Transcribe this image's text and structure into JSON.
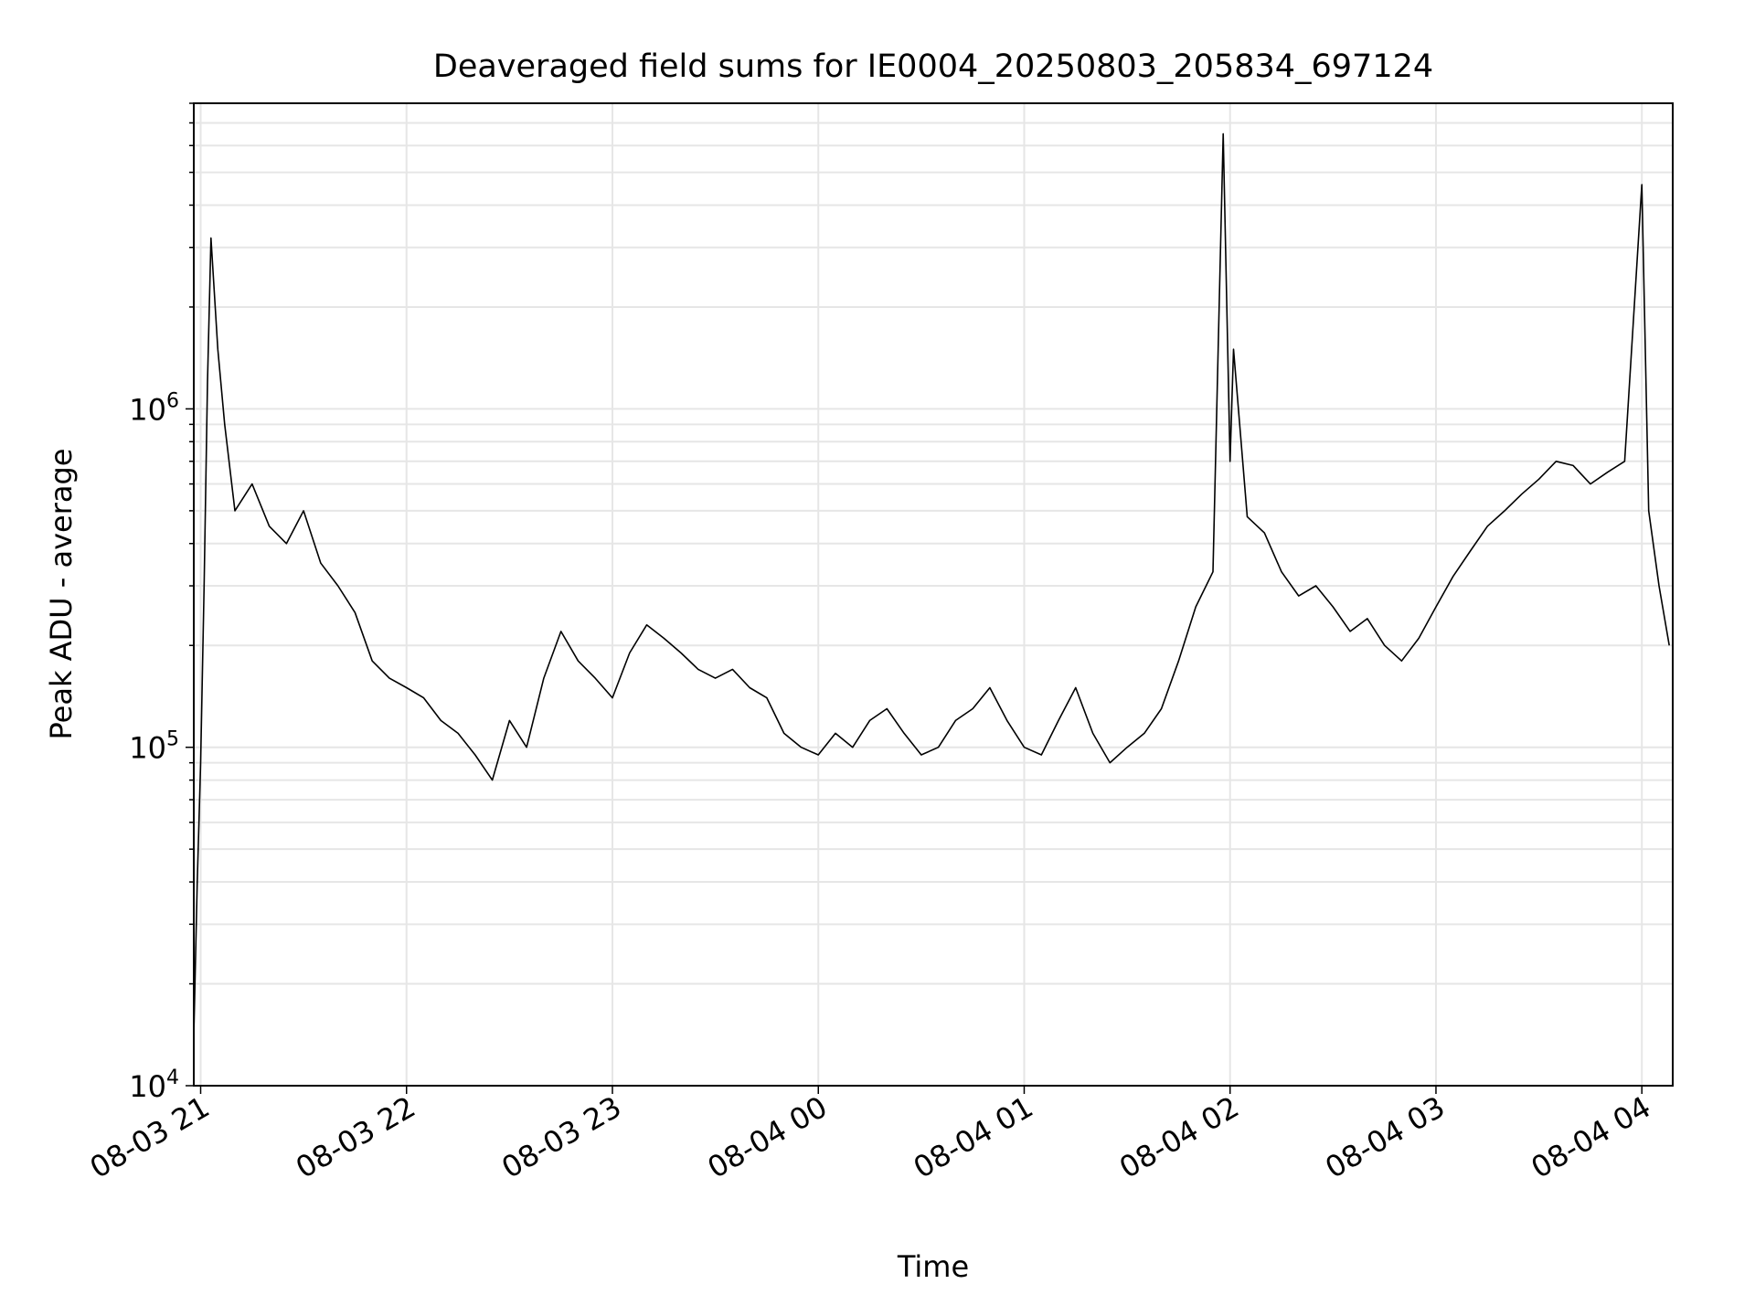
{
  "chart_data": {
    "type": "line",
    "title": "Deaveraged field sums for IE0004_20250803_205834_697124",
    "xlabel": "Time",
    "ylabel": "Peak ADU - average",
    "y_scale": "log",
    "ylim": [
      10000,
      8000000
    ],
    "xlim": [
      "2025-08-03 20:58",
      "2025-08-04 04:09"
    ],
    "x_ticks": [
      {
        "label": "08-03 21",
        "time": "2025-08-03 21:00"
      },
      {
        "label": "08-03 22",
        "time": "2025-08-03 22:00"
      },
      {
        "label": "08-03 23",
        "time": "2025-08-03 23:00"
      },
      {
        "label": "08-04 00",
        "time": "2025-08-04 00:00"
      },
      {
        "label": "08-04 01",
        "time": "2025-08-04 01:00"
      },
      {
        "label": "08-04 02",
        "time": "2025-08-04 02:00"
      },
      {
        "label": "08-04 03",
        "time": "2025-08-04 03:00"
      },
      {
        "label": "08-04 04",
        "time": "2025-08-04 04:00"
      }
    ],
    "y_ticks": [
      {
        "base": "10",
        "exp": "4",
        "value": 10000
      },
      {
        "base": "10",
        "exp": "5",
        "value": 100000
      },
      {
        "base": "10",
        "exp": "6",
        "value": 1000000
      }
    ],
    "grid": true,
    "line_color": "#000000",
    "series": [
      {
        "x": [
          "2025-08-03 20:58",
          "2025-08-03 20:59",
          "2025-08-03 21:00",
          "2025-08-03 21:01",
          "2025-08-03 21:02",
          "2025-08-03 21:03",
          "2025-08-03 21:05",
          "2025-08-03 21:07",
          "2025-08-03 21:10",
          "2025-08-03 21:15",
          "2025-08-03 21:20",
          "2025-08-03 21:25",
          "2025-08-03 21:30",
          "2025-08-03 21:35",
          "2025-08-03 21:40",
          "2025-08-03 21:45",
          "2025-08-03 21:50",
          "2025-08-03 21:55",
          "2025-08-03 22:00",
          "2025-08-03 22:05",
          "2025-08-03 22:10",
          "2025-08-03 22:15",
          "2025-08-03 22:20",
          "2025-08-03 22:25",
          "2025-08-03 22:30",
          "2025-08-03 22:35",
          "2025-08-03 22:40",
          "2025-08-03 22:45",
          "2025-08-03 22:50",
          "2025-08-03 22:55",
          "2025-08-03 23:00",
          "2025-08-03 23:05",
          "2025-08-03 23:10",
          "2025-08-03 23:15",
          "2025-08-03 23:20",
          "2025-08-03 23:25",
          "2025-08-03 23:30",
          "2025-08-03 23:35",
          "2025-08-03 23:40",
          "2025-08-03 23:45",
          "2025-08-03 23:50",
          "2025-08-03 23:55",
          "2025-08-04 00:00",
          "2025-08-04 00:05",
          "2025-08-04 00:10",
          "2025-08-04 00:15",
          "2025-08-04 00:20",
          "2025-08-04 00:25",
          "2025-08-04 00:30",
          "2025-08-04 00:35",
          "2025-08-04 00:40",
          "2025-08-04 00:45",
          "2025-08-04 00:50",
          "2025-08-04 00:55",
          "2025-08-04 01:00",
          "2025-08-04 01:05",
          "2025-08-04 01:10",
          "2025-08-04 01:15",
          "2025-08-04 01:20",
          "2025-08-04 01:25",
          "2025-08-04 01:30",
          "2025-08-04 01:35",
          "2025-08-04 01:40",
          "2025-08-04 01:45",
          "2025-08-04 01:50",
          "2025-08-04 01:55",
          "2025-08-04 01:58",
          "2025-08-04 02:00",
          "2025-08-04 02:01",
          "2025-08-04 02:05",
          "2025-08-04 02:10",
          "2025-08-04 02:15",
          "2025-08-04 02:20",
          "2025-08-04 02:25",
          "2025-08-04 02:30",
          "2025-08-04 02:35",
          "2025-08-04 02:40",
          "2025-08-04 02:45",
          "2025-08-04 02:50",
          "2025-08-04 02:55",
          "2025-08-04 03:00",
          "2025-08-04 03:05",
          "2025-08-04 03:10",
          "2025-08-04 03:15",
          "2025-08-04 03:20",
          "2025-08-04 03:25",
          "2025-08-04 03:30",
          "2025-08-04 03:35",
          "2025-08-04 03:40",
          "2025-08-04 03:45",
          "2025-08-04 03:50",
          "2025-08-04 03:55",
          "2025-08-04 04:00",
          "2025-08-04 04:02",
          "2025-08-04 04:05",
          "2025-08-04 04:08"
        ],
        "values": [
          14000,
          40000,
          90000,
          300000,
          1200000,
          3200000,
          1500000,
          900000,
          500000,
          600000,
          450000,
          400000,
          500000,
          350000,
          300000,
          250000,
          180000,
          160000,
          150000,
          140000,
          120000,
          110000,
          95000,
          80000,
          120000,
          100000,
          160000,
          220000,
          180000,
          160000,
          140000,
          190000,
          230000,
          210000,
          190000,
          170000,
          160000,
          170000,
          150000,
          140000,
          110000,
          100000,
          95000,
          110000,
          100000,
          120000,
          130000,
          110000,
          95000,
          100000,
          120000,
          130000,
          150000,
          120000,
          100000,
          95000,
          120000,
          150000,
          110000,
          90000,
          100000,
          110000,
          130000,
          180000,
          260000,
          330000,
          6500000,
          700000,
          1500000,
          480000,
          430000,
          330000,
          280000,
          300000,
          260000,
          220000,
          240000,
          200000,
          180000,
          210000,
          260000,
          320000,
          380000,
          450000,
          500000,
          560000,
          620000,
          700000,
          680000,
          600000,
          650000,
          700000,
          4600000,
          500000,
          300000,
          200000
        ]
      }
    ]
  }
}
